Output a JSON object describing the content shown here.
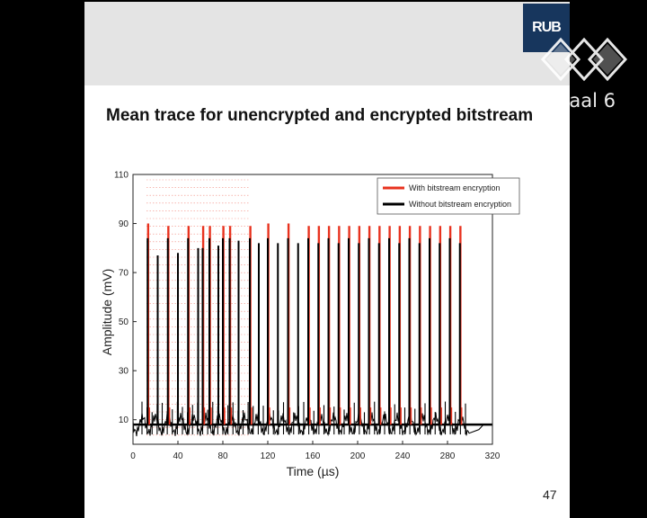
{
  "slide": {
    "logo_text": "RUB",
    "title": "Mean trace for unencrypted and encrypted bitstream",
    "page_number": "47"
  },
  "watermark": {
    "logo_icon": "ccc-tricube-icon",
    "label": "Saal 6"
  },
  "colors": {
    "encrypted": "#e8321e",
    "unencrypted": "#000000",
    "header_bg": "#e4e4e4",
    "logo_bg": "#17365d"
  },
  "chart_data": {
    "type": "line",
    "title": "",
    "xlabel": "Time (µs)",
    "ylabel": "Amplitude (mV)",
    "xlim": [
      0,
      320
    ],
    "ylim": [
      0,
      110
    ],
    "xticks": [
      "0",
      "40",
      "80",
      "120",
      "160",
      "200",
      "240",
      "280",
      "320"
    ],
    "yticks": [
      "10",
      "30",
      "50",
      "70",
      "90",
      "110"
    ],
    "legend_position": "top-right",
    "grid": false,
    "baseline_mV": 8,
    "series": [
      {
        "name": "With bitstream encryption",
        "color": "#e8321e",
        "spike_times_us": [
          13,
          31,
          49,
          62,
          68,
          80,
          86,
          104,
          120,
          138,
          156,
          165,
          174,
          183,
          192,
          201,
          210,
          219,
          228,
          237,
          246,
          255,
          264,
          273,
          282,
          291
        ],
        "spike_peaks_mV": [
          90,
          89,
          89,
          89,
          89,
          89,
          89,
          89,
          90,
          90,
          89,
          89,
          89,
          89,
          89,
          89,
          89,
          89,
          89,
          89,
          89,
          89,
          89,
          89,
          89,
          89
        ]
      },
      {
        "name": "Without bitstream encryption",
        "color": "#000000",
        "spike_times_us": [
          13,
          22,
          31,
          40,
          49,
          58,
          62,
          68,
          76,
          80,
          86,
          94,
          104,
          112,
          120,
          129,
          138,
          147,
          156,
          165,
          174,
          183,
          192,
          201,
          210,
          219,
          228,
          237,
          246,
          255,
          264,
          273,
          282,
          291
        ],
        "spike_peaks_mV": [
          84,
          77,
          84,
          78,
          84,
          80,
          80,
          84,
          81,
          84,
          84,
          83,
          84,
          82,
          84,
          82,
          84,
          82,
          84,
          82,
          84,
          82,
          84,
          82,
          84,
          82,
          84,
          82,
          84,
          82,
          84,
          82,
          84,
          82
        ]
      }
    ]
  }
}
